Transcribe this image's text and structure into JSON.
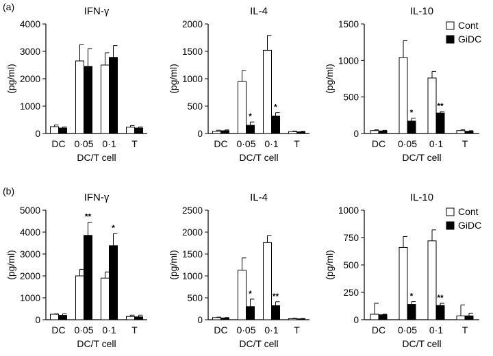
{
  "figure": {
    "legend": {
      "cont_label": "Cont",
      "gidc_label": "GiDC",
      "cont_color": "#ffffff",
      "gidc_color": "#000000"
    }
  },
  "chart_data": [
    {
      "type": "bar",
      "panel_label": "(a)",
      "title": "IFN-γ",
      "ylabel": "(pg/ml)",
      "xlabel": "DC/T cell",
      "categories": [
        "DC",
        "0·05",
        "0·1",
        "T"
      ],
      "ylim": [
        0,
        4000
      ],
      "yticks": [
        0,
        1000,
        2000,
        3000,
        4000
      ],
      "series": [
        {
          "name": "Cont",
          "values": [
            250,
            2650,
            2500,
            230
          ],
          "errors": [
            60,
            600,
            450,
            60
          ],
          "stars": [
            "",
            "",
            "",
            ""
          ]
        },
        {
          "name": "GiDC",
          "values": [
            200,
            2450,
            2780,
            200
          ],
          "errors": [
            40,
            650,
            430,
            40
          ],
          "stars": [
            "",
            "",
            "",
            ""
          ]
        }
      ],
      "legend": false
    },
    {
      "type": "bar",
      "panel_label": "",
      "title": "IL-4",
      "ylabel": "(pg/ml)",
      "xlabel": "DC/T cell",
      "categories": [
        "DC",
        "0·05",
        "0·1",
        "T"
      ],
      "ylim": [
        0,
        2000
      ],
      "yticks": [
        0,
        500,
        1000,
        1500,
        2000
      ],
      "series": [
        {
          "name": "Cont",
          "values": [
            40,
            950,
            1520,
            35
          ],
          "errors": [
            20,
            200,
            270,
            10
          ],
          "stars": [
            "",
            "",
            "",
            ""
          ]
        },
        {
          "name": "GiDC",
          "values": [
            50,
            150,
            320,
            30
          ],
          "errors": [
            15,
            60,
            60,
            10
          ],
          "stars": [
            "",
            "*",
            "*",
            ""
          ]
        }
      ],
      "legend": false
    },
    {
      "type": "bar",
      "panel_label": "",
      "title": "IL-10",
      "ylabel": "(pg/ml)",
      "xlabel": "DC/T cell",
      "categories": [
        "DC",
        "0·05",
        "0·1",
        "T"
      ],
      "ylim": [
        0,
        1500
      ],
      "yticks": [
        0,
        500,
        1000,
        1500
      ],
      "series": [
        {
          "name": "Cont",
          "values": [
            40,
            1040,
            760,
            40
          ],
          "errors": [
            10,
            230,
            90,
            10
          ],
          "stars": [
            "",
            "",
            "",
            ""
          ]
        },
        {
          "name": "GiDC",
          "values": [
            35,
            170,
            280,
            30
          ],
          "errors": [
            8,
            40,
            20,
            8
          ],
          "stars": [
            "",
            "*",
            "**",
            ""
          ]
        }
      ],
      "legend": true,
      "legend_position": "top-right"
    },
    {
      "type": "bar",
      "panel_label": "(b)",
      "title": "IFN-γ",
      "ylabel": "(pg/ml)",
      "xlabel": "DC/T cell",
      "categories": [
        "DC",
        "0·05",
        "0·1",
        "T"
      ],
      "ylim": [
        0,
        5000
      ],
      "yticks": [
        0,
        1000,
        2000,
        3000,
        4000,
        5000
      ],
      "series": [
        {
          "name": "Cont",
          "values": [
            250,
            2000,
            1900,
            150
          ],
          "errors": [
            20,
            300,
            280,
            60
          ],
          "stars": [
            "",
            "",
            "",
            ""
          ]
        },
        {
          "name": "GiDC",
          "values": [
            200,
            3850,
            3380,
            130
          ],
          "errors": [
            70,
            600,
            550,
            80
          ],
          "stars": [
            "",
            "**",
            "*",
            ""
          ]
        }
      ],
      "legend": false
    },
    {
      "type": "bar",
      "panel_label": "",
      "title": "IL-4",
      "ylabel": "(pg/ml)",
      "xlabel": "DC/T cell",
      "categories": [
        "DC",
        "0·05",
        "0·1",
        "T"
      ],
      "ylim": [
        0,
        2500
      ],
      "yticks": [
        0,
        500,
        1000,
        1500,
        2000,
        2500
      ],
      "series": [
        {
          "name": "Cont",
          "values": [
            50,
            1130,
            1760,
            25
          ],
          "errors": [
            10,
            280,
            160,
            8
          ],
          "stars": [
            "",
            "",
            "",
            ""
          ]
        },
        {
          "name": "GiDC",
          "values": [
            40,
            300,
            320,
            20
          ],
          "errors": [
            10,
            170,
            90,
            8
          ],
          "stars": [
            "",
            "*",
            "**",
            ""
          ]
        }
      ],
      "legend": false
    },
    {
      "type": "bar",
      "panel_label": "",
      "title": "IL-10",
      "ylabel": "(pg/ml)",
      "xlabel": "DC/T cell",
      "categories": [
        "DC",
        "0·05",
        "0·1",
        "T"
      ],
      "ylim": [
        0,
        1000
      ],
      "yticks": [
        0,
        250,
        500,
        750,
        1000
      ],
      "series": [
        {
          "name": "Cont",
          "values": [
            50,
            660,
            720,
            35
          ],
          "errors": [
            100,
            100,
            100,
            100
          ],
          "stars": [
            "",
            "",
            "",
            ""
          ]
        },
        {
          "name": "GiDC",
          "values": [
            45,
            140,
            130,
            35
          ],
          "errors": [
            5,
            25,
            20,
            25
          ],
          "stars": [
            "",
            "*",
            "**",
            ""
          ]
        }
      ],
      "legend": true,
      "legend_position": "top-right"
    }
  ]
}
